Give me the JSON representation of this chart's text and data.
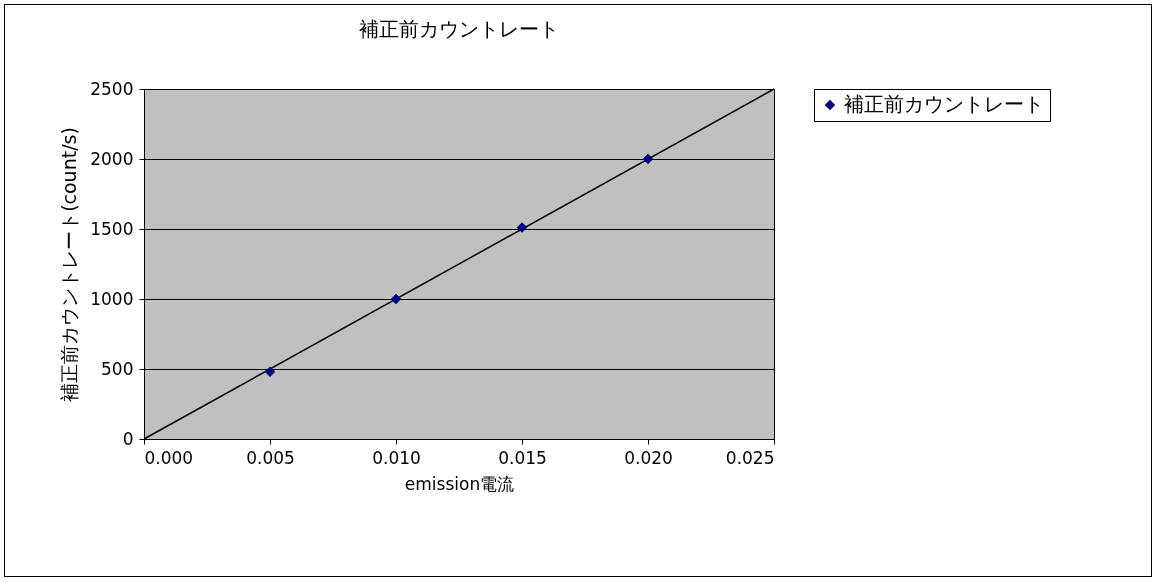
{
  "chart_data": {
    "type": "scatter",
    "title": "補正前カウントレート",
    "xlabel": "emission電流",
    "ylabel": "補正前カウントレート(count/s)",
    "x": [
      0.005,
      0.01,
      0.015,
      0.02
    ],
    "series": [
      {
        "name": "補正前カウントレート",
        "color": "#000080",
        "values": [
          480,
          1000,
          1510,
          2000
        ],
        "marker": "diamond"
      },
      {
        "type": "line",
        "x": [
          0,
          0.025
        ],
        "values": [
          0,
          2500
        ],
        "color": "#000000",
        "marker": "none"
      }
    ],
    "xlim": [
      0,
      0.025
    ],
    "xticks": [
      {
        "value": 0,
        "label": "0.000"
      },
      {
        "value": 0.005,
        "label": "0.005"
      },
      {
        "value": 0.01,
        "label": "0.010"
      },
      {
        "value": 0.015,
        "label": "0.015"
      },
      {
        "value": 0.02,
        "label": "0.020"
      },
      {
        "value": 0.025,
        "label": "0.025"
      }
    ],
    "ylim": [
      0,
      2500
    ],
    "yticks": [
      0,
      500,
      1000,
      1500,
      2000,
      2500
    ],
    "grid": "y",
    "legend": "right"
  }
}
